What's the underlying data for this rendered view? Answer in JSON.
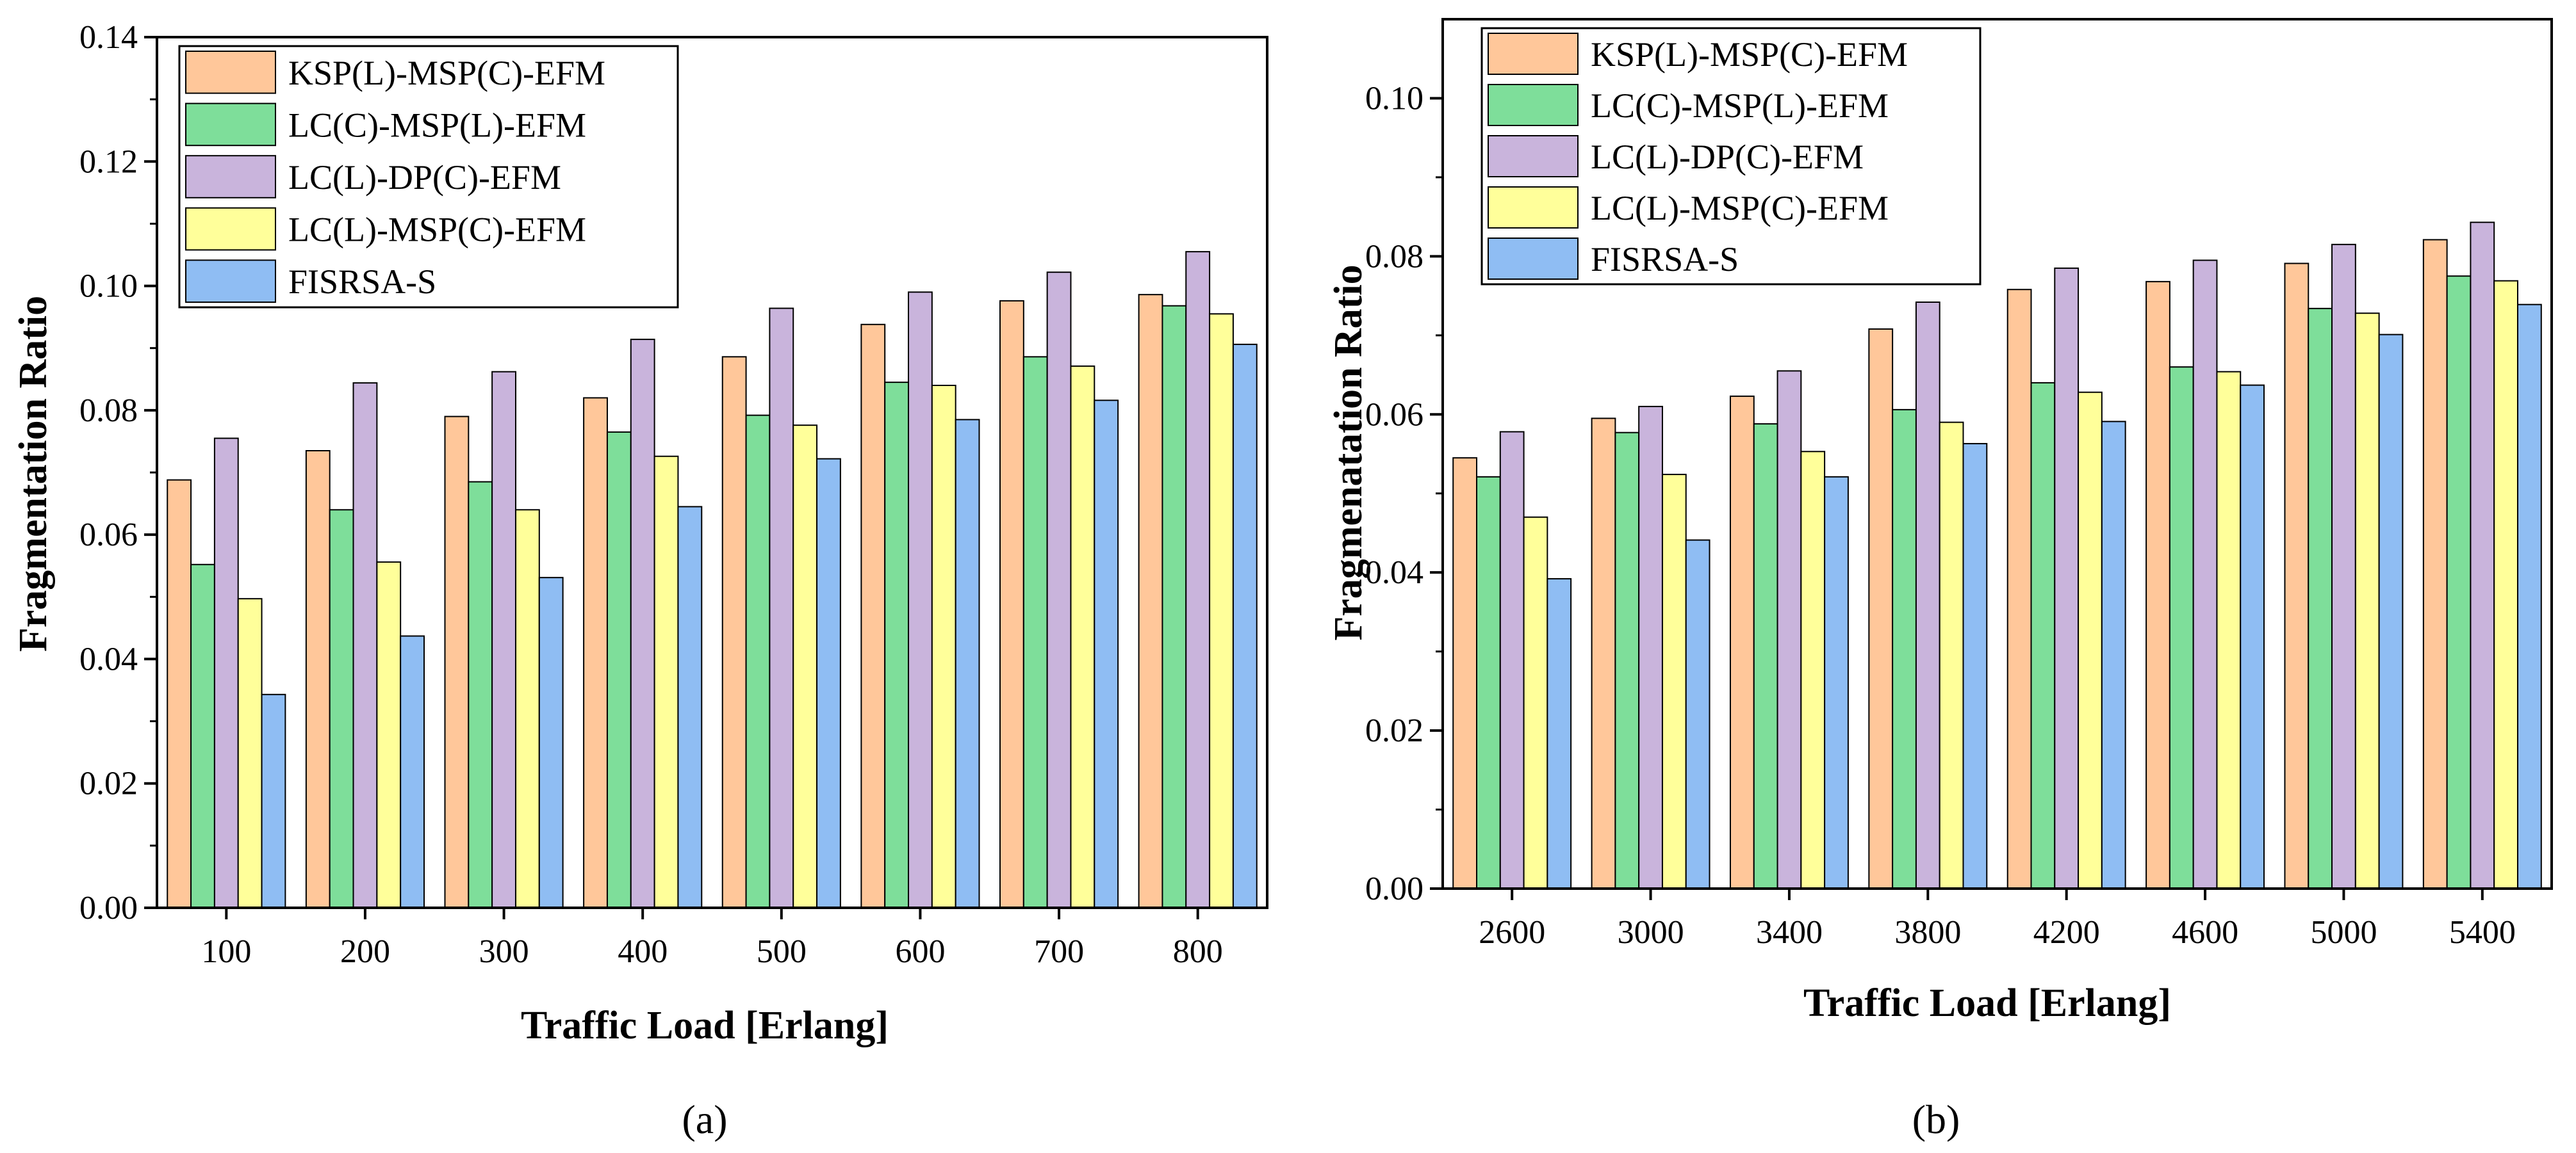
{
  "colors": {
    "KSP(L)-MSP(C)-EFM": "#FFC79A",
    "LC(C)-MSP(L)-EFM": "#7EDE9A",
    "LC(L)-DP(C)-EFM": "#C9B4DC",
    "LC(L)-MSP(C)-EFM": "#FFFF9A",
    "FISRSA-S": "#8FBDF3"
  },
  "chart_data": [
    {
      "type": "bar",
      "panel_label": "(a)",
      "xlabel": "Traffic Load [Erlang]",
      "ylabel": "Fragmentation Ratio",
      "ylim": [
        0,
        0.14
      ],
      "yticks": [
        "0.00",
        "0.02",
        "0.04",
        "0.06",
        "0.08",
        "0.10",
        "0.12",
        "0.14"
      ],
      "categories": [
        "100",
        "200",
        "300",
        "400",
        "500",
        "600",
        "700",
        "800"
      ],
      "legend_position": "top-left",
      "grid": false,
      "series": [
        {
          "name": "KSP(L)-MSP(C)-EFM",
          "values": [
            0.0688,
            0.0735,
            0.079,
            0.082,
            0.0886,
            0.0938,
            0.0976,
            0.0986
          ]
        },
        {
          "name": "LC(C)-MSP(L)-EFM",
          "values": [
            0.0552,
            0.064,
            0.0685,
            0.0765,
            0.0792,
            0.0845,
            0.0886,
            0.0968
          ]
        },
        {
          "name": "LC(L)-DP(C)-EFM",
          "values": [
            0.0755,
            0.0844,
            0.0862,
            0.0914,
            0.0964,
            0.099,
            0.1022,
            0.1055
          ]
        },
        {
          "name": "LC(L)-MSP(C)-EFM",
          "values": [
            0.0497,
            0.0556,
            0.064,
            0.0726,
            0.0776,
            0.084,
            0.0871,
            0.0955
          ]
        },
        {
          "name": "FISRSA-S",
          "values": [
            0.0343,
            0.0437,
            0.0531,
            0.0645,
            0.0722,
            0.0785,
            0.0816,
            0.0906
          ]
        }
      ]
    },
    {
      "type": "bar",
      "panel_label": "(b)",
      "xlabel": "Traffic Load [Erlang]",
      "ylabel": "Fragmenatation Ratio",
      "ylim": [
        0,
        0.11
      ],
      "yticks": [
        "0.00",
        "0.02",
        "0.04",
        "0.06",
        "0.08",
        "0.10"
      ],
      "categories": [
        "2600",
        "3000",
        "3400",
        "3800",
        "4200",
        "4600",
        "5000",
        "5400"
      ],
      "legend_position": "top-left",
      "grid": false,
      "series": [
        {
          "name": "KSP(L)-MSP(C)-EFM",
          "values": [
            0.0545,
            0.0595,
            0.0623,
            0.0708,
            0.0758,
            0.0768,
            0.0791,
            0.0821
          ]
        },
        {
          "name": "LC(C)-MSP(L)-EFM",
          "values": [
            0.0521,
            0.0577,
            0.0588,
            0.0606,
            0.064,
            0.066,
            0.0734,
            0.0775
          ]
        },
        {
          "name": "LC(L)-DP(C)-EFM",
          "values": [
            0.0578,
            0.061,
            0.0655,
            0.0742,
            0.0785,
            0.0795,
            0.0815,
            0.0843
          ]
        },
        {
          "name": "LC(L)-MSP(C)-EFM",
          "values": [
            0.047,
            0.0524,
            0.0553,
            0.059,
            0.0628,
            0.0654,
            0.0728,
            0.0769
          ]
        },
        {
          "name": "FISRSA-S",
          "values": [
            0.0392,
            0.0441,
            0.0521,
            0.0563,
            0.0591,
            0.0637,
            0.0701,
            0.0739
          ]
        }
      ]
    }
  ]
}
